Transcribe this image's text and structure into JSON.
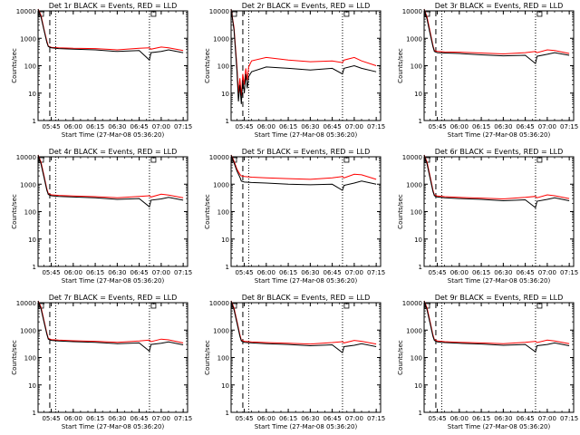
{
  "figure": {
    "colors": {
      "events": "#000000",
      "lld": "#ff0000",
      "background": "#ffffff",
      "axis": "#000000"
    },
    "x_tick_labels": [
      "05:45",
      "06:00",
      "06:15",
      "06:30",
      "06:45",
      "07:00",
      "07:15"
    ],
    "y_tick_labels": [
      "1",
      "10",
      "100",
      "1000",
      "10000"
    ],
    "ylabel": "Counts/sec",
    "xlabel": "Start Time (27-Mar-08 05:36:20)"
  },
  "chart_data": [
    {
      "type": "line",
      "title": "Det 1r BLACK = Events, RED = LLD",
      "xlabel": "Start Time (27-Mar-08 05:36:20)",
      "ylabel": "Counts/sec",
      "x": [
        "05:36",
        "05:38",
        "05:40",
        "05:42",
        "05:43",
        "05:45",
        "05:50",
        "06:00",
        "06:15",
        "06:30",
        "06:45",
        "06:52",
        "06:53",
        "07:00",
        "07:05",
        "07:15"
      ],
      "series": [
        {
          "name": "Events",
          "values": [
            12000,
            6000,
            2000,
            700,
            500,
            450,
            420,
            400,
            380,
            330,
            360,
            160,
            300,
            330,
            380,
            300
          ]
        },
        {
          "name": "LLD",
          "values": [
            15000,
            7000,
            2200,
            800,
            520,
            470,
            450,
            430,
            420,
            380,
            430,
            450,
            400,
            480,
            450,
            360
          ]
        }
      ],
      "xlim": [
        "05:36",
        "07:18"
      ],
      "ylim": [
        1,
        10000
      ],
      "yscale": "log",
      "dashed_vline": "05:44",
      "dotted_vlines": [
        "05:48",
        "06:52"
      ]
    },
    {
      "type": "line",
      "title": "Det 2r BLACK = Events, RED = LLD",
      "xlabel": "Start Time (27-Mar-08 05:36:20)",
      "ylabel": "Counts/sec",
      "x": [
        "05:36",
        "05:38",
        "05:40",
        "05:41",
        "05:42",
        "05:43",
        "05:44",
        "05:45",
        "05:46",
        "05:47",
        "05:48",
        "05:50",
        "06:00",
        "06:15",
        "06:30",
        "06:45",
        "06:52",
        "06:53",
        "07:00",
        "07:05",
        "07:15"
      ],
      "series": [
        {
          "name": "Events",
          "values": [
            12000,
            2000,
            60,
            5,
            20,
            4,
            30,
            10,
            50,
            15,
            40,
            60,
            90,
            80,
            70,
            80,
            50,
            80,
            100,
            80,
            60
          ]
        },
        {
          "name": "LLD",
          "values": [
            15000,
            2500,
            90,
            10,
            35,
            8,
            50,
            20,
            80,
            30,
            90,
            150,
            200,
            160,
            140,
            150,
            130,
            160,
            200,
            150,
            100
          ]
        }
      ],
      "xlim": [
        "05:36",
        "07:18"
      ],
      "ylim": [
        1,
        10000
      ],
      "yscale": "log",
      "dashed_vline": "05:44",
      "dotted_vlines": [
        "05:48",
        "06:52"
      ]
    },
    {
      "type": "line",
      "title": "Det 3r BLACK = Events, RED = LLD",
      "xlabel": "Start Time (27-Mar-08 05:36:20)",
      "ylabel": "Counts/sec",
      "x": [
        "05:36",
        "05:38",
        "05:40",
        "05:42",
        "05:43",
        "05:45",
        "05:50",
        "06:00",
        "06:15",
        "06:30",
        "06:45",
        "06:52",
        "06:53",
        "07:00",
        "07:05",
        "07:15"
      ],
      "series": [
        {
          "name": "Events",
          "values": [
            12000,
            5000,
            1500,
            500,
            330,
            300,
            290,
            280,
            250,
            230,
            240,
            120,
            220,
            260,
            300,
            240
          ]
        },
        {
          "name": "LLD",
          "values": [
            15000,
            6000,
            1800,
            560,
            360,
            330,
            320,
            310,
            290,
            270,
            300,
            330,
            300,
            380,
            360,
            280
          ]
        }
      ],
      "xlim": [
        "05:36",
        "07:18"
      ],
      "ylim": [
        1,
        10000
      ],
      "yscale": "log",
      "dashed_vline": "05:44",
      "dotted_vlines": [
        "05:48",
        "06:52"
      ]
    },
    {
      "type": "line",
      "title": "Det 4r BLACK = Events, RED = LLD",
      "xlabel": "Start Time (27-Mar-08 05:36:20)",
      "ylabel": "Counts/sec",
      "x": [
        "05:36",
        "05:38",
        "05:40",
        "05:42",
        "05:43",
        "05:45",
        "05:50",
        "06:00",
        "06:15",
        "06:30",
        "06:45",
        "06:52",
        "06:53",
        "07:00",
        "07:05",
        "07:15"
      ],
      "series": [
        {
          "name": "Events",
          "values": [
            12000,
            5500,
            1800,
            600,
            420,
            380,
            360,
            340,
            320,
            280,
            300,
            150,
            260,
            290,
            330,
            260
          ]
        },
        {
          "name": "LLD",
          "values": [
            15000,
            6500,
            2100,
            680,
            450,
            410,
            390,
            370,
            350,
            320,
            360,
            380,
            340,
            430,
            400,
            320
          ]
        }
      ],
      "xlim": [
        "05:36",
        "07:18"
      ],
      "ylim": [
        1,
        10000
      ],
      "yscale": "log",
      "dashed_vline": "05:44",
      "dotted_vlines": [
        "05:48",
        "06:52"
      ]
    },
    {
      "type": "line",
      "title": "Det 5r BLACK = Events, RED = LLD",
      "xlabel": "Start Time (27-Mar-08 05:36:20)",
      "ylabel": "Counts/sec",
      "x": [
        "05:36",
        "05:38",
        "05:40",
        "05:42",
        "05:43",
        "05:45",
        "05:50",
        "06:00",
        "06:15",
        "06:30",
        "06:45",
        "06:52",
        "06:53",
        "07:00",
        "07:05",
        "07:15"
      ],
      "series": [
        {
          "name": "Events",
          "values": [
            12000,
            6000,
            3000,
            1800,
            1300,
            1200,
            1150,
            1100,
            1000,
            950,
            1000,
            600,
            900,
            1100,
            1300,
            1000
          ]
        },
        {
          "name": "LLD",
          "values": [
            15000,
            7000,
            3500,
            2300,
            2000,
            1900,
            1800,
            1700,
            1600,
            1500,
            1700,
            1900,
            1700,
            2300,
            2200,
            1500
          ]
        }
      ],
      "xlim": [
        "05:36",
        "07:18"
      ],
      "ylim": [
        1,
        10000
      ],
      "yscale": "log",
      "dashed_vline": "05:44",
      "dotted_vlines": [
        "05:48",
        "06:52"
      ]
    },
    {
      "type": "line",
      "title": "Det 6r BLACK = Events, RED = LLD",
      "xlabel": "Start Time (27-Mar-08 05:36:20)",
      "ylabel": "Counts/sec",
      "x": [
        "05:36",
        "05:38",
        "05:40",
        "05:42",
        "05:43",
        "05:45",
        "05:50",
        "06:00",
        "06:15",
        "06:30",
        "06:45",
        "06:52",
        "06:53",
        "07:00",
        "07:05",
        "07:15"
      ],
      "series": [
        {
          "name": "Events",
          "values": [
            12000,
            5500,
            1700,
            550,
            380,
            340,
            320,
            300,
            280,
            250,
            270,
            140,
            240,
            280,
            320,
            250
          ]
        },
        {
          "name": "LLD",
          "values": [
            15000,
            6500,
            2000,
            620,
            410,
            370,
            350,
            330,
            310,
            290,
            330,
            360,
            320,
            410,
            380,
            300
          ]
        }
      ],
      "xlim": [
        "05:36",
        "07:18"
      ],
      "ylim": [
        1,
        10000
      ],
      "yscale": "log",
      "dashed_vline": "05:44",
      "dotted_vlines": [
        "05:48",
        "06:52"
      ]
    },
    {
      "type": "line",
      "title": "Det 7r BLACK = Events, RED = LLD",
      "xlabel": "Start Time (27-Mar-08 05:36:20)",
      "ylabel": "Counts/sec",
      "x": [
        "05:36",
        "05:38",
        "05:40",
        "05:42",
        "05:43",
        "05:45",
        "05:50",
        "06:00",
        "06:15",
        "06:30",
        "06:45",
        "06:52",
        "06:53",
        "07:00",
        "07:05",
        "07:15"
      ],
      "series": [
        {
          "name": "Events",
          "values": [
            12000,
            6000,
            2000,
            700,
            470,
            420,
            400,
            380,
            360,
            320,
            340,
            170,
            300,
            330,
            370,
            290
          ]
        },
        {
          "name": "LLD",
          "values": [
            15000,
            7000,
            2300,
            780,
            500,
            450,
            430,
            410,
            390,
            360,
            400,
            430,
            380,
            470,
            440,
            340
          ]
        }
      ],
      "xlim": [
        "05:36",
        "07:18"
      ],
      "ylim": [
        1,
        10000
      ],
      "yscale": "log",
      "dashed_vline": "05:44",
      "dotted_vlines": [
        "05:48",
        "06:52"
      ]
    },
    {
      "type": "line",
      "title": "Det 8r BLACK = Events, RED = LLD",
      "xlabel": "Start Time (27-Mar-08 05:36:20)",
      "ylabel": "Counts/sec",
      "x": [
        "05:36",
        "05:38",
        "05:40",
        "05:42",
        "05:43",
        "05:45",
        "05:50",
        "06:00",
        "06:15",
        "06:30",
        "06:45",
        "06:52",
        "06:53",
        "07:00",
        "07:05",
        "07:15"
      ],
      "series": [
        {
          "name": "Events",
          "values": [
            12000,
            5500,
            1800,
            600,
            400,
            360,
            340,
            320,
            300,
            270,
            290,
            150,
            250,
            280,
            320,
            250
          ]
        },
        {
          "name": "LLD",
          "values": [
            15000,
            6500,
            2100,
            680,
            430,
            390,
            370,
            350,
            330,
            310,
            350,
            380,
            340,
            420,
            390,
            310
          ]
        }
      ],
      "xlim": [
        "05:36",
        "07:18"
      ],
      "ylim": [
        1,
        10000
      ],
      "yscale": "log",
      "dashed_vline": "05:44",
      "dotted_vlines": [
        "05:48",
        "06:52"
      ]
    },
    {
      "type": "line",
      "title": "Det 9r BLACK = Events, RED = LLD",
      "xlabel": "Start Time (27-Mar-08 05:36:20)",
      "ylabel": "Counts/sec",
      "x": [
        "05:36",
        "05:38",
        "05:40",
        "05:42",
        "05:43",
        "05:45",
        "05:50",
        "06:00",
        "06:15",
        "06:30",
        "06:45",
        "06:52",
        "06:53",
        "07:00",
        "07:05",
        "07:15"
      ],
      "series": [
        {
          "name": "Events",
          "values": [
            12000,
            5500,
            1800,
            600,
            420,
            370,
            350,
            330,
            310,
            280,
            300,
            160,
            270,
            300,
            340,
            270
          ]
        },
        {
          "name": "LLD",
          "values": [
            15000,
            6500,
            2100,
            680,
            450,
            400,
            380,
            360,
            340,
            320,
            360,
            390,
            350,
            430,
            400,
            320
          ]
        }
      ],
      "xlim": [
        "05:36",
        "07:18"
      ],
      "ylim": [
        1,
        10000
      ],
      "yscale": "log",
      "dashed_vline": "05:44",
      "dotted_vlines": [
        "05:48",
        "06:52"
      ]
    }
  ]
}
